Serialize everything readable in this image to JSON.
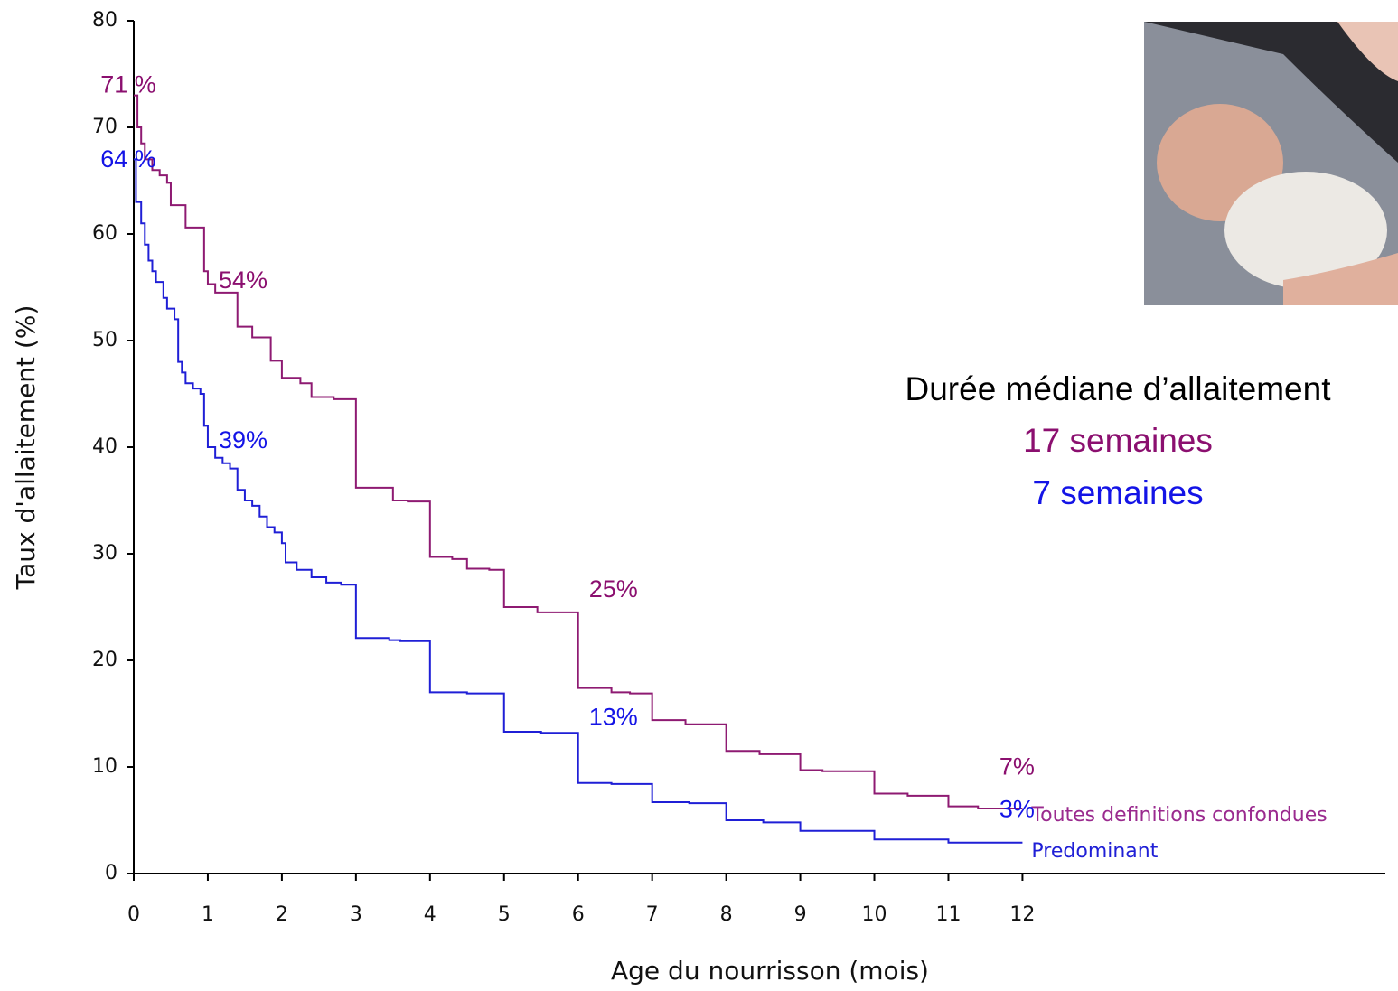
{
  "chart_data": {
    "type": "step",
    "y_label": "Taux d'allaitement (%)",
    "x_label": "Age du nourrisson (mois)",
    "xlim": [
      0,
      16.9
    ],
    "xticks": [
      0,
      1,
      2,
      3,
      4,
      5,
      6,
      7,
      8,
      9,
      10,
      11,
      12
    ],
    "ylim": [
      0,
      80
    ],
    "yticks": [
      0,
      10,
      20,
      30,
      40,
      50,
      60,
      70,
      80
    ],
    "series": [
      {
        "name": "Toutes definitions confondues",
        "color": "#8e1a72",
        "label_color": "#9a2a8e",
        "x": [
          0,
          0.05,
          0.1,
          0.15,
          0.25,
          0.35,
          0.45,
          0.5,
          0.7,
          0.95,
          1.0,
          1.1,
          1.4,
          1.6,
          1.85,
          2.0,
          2.25,
          2.4,
          2.7,
          3.0,
          3.5,
          3.7,
          4.0,
          4.3,
          4.5,
          4.8,
          5.0,
          5.45,
          6.0,
          6.45,
          6.7,
          7.0,
          7.45,
          8.0,
          8.45,
          9.0,
          9.3,
          10.0,
          10.45,
          11.0,
          11.4,
          12.0
        ],
        "values": [
          73,
          70,
          68.5,
          67,
          66,
          65.5,
          64.8,
          62.7,
          60.6,
          56.5,
          55.3,
          54.5,
          51.3,
          50.3,
          48.1,
          46.5,
          46,
          44.7,
          44.5,
          36.2,
          35,
          34.9,
          29.7,
          29.5,
          28.6,
          28.5,
          25,
          24.5,
          17.4,
          17.0,
          16.9,
          14.4,
          14.0,
          11.5,
          11.2,
          9.7,
          9.6,
          7.5,
          7.3,
          6.3,
          6.1,
          6.1
        ]
      },
      {
        "name": "Predominant",
        "color": "#1f1fd6",
        "label_color": "#1f1fd6",
        "x": [
          0,
          0.03,
          0.1,
          0.15,
          0.2,
          0.25,
          0.3,
          0.4,
          0.45,
          0.55,
          0.6,
          0.65,
          0.7,
          0.8,
          0.9,
          0.95,
          1.0,
          1.1,
          1.2,
          1.3,
          1.4,
          1.5,
          1.6,
          1.7,
          1.8,
          1.9,
          2.0,
          2.05,
          2.2,
          2.4,
          2.6,
          2.8,
          3.0,
          3.45,
          3.6,
          4.0,
          4.5,
          5.0,
          5.5,
          6.0,
          6.45,
          7.0,
          7.5,
          8.0,
          8.5,
          9.0,
          9.5,
          10.0,
          10.5,
          11.0,
          11.5,
          12.0
        ],
        "values": [
          67,
          63,
          61,
          59,
          57.5,
          56.5,
          55.5,
          54,
          53,
          52,
          48,
          47,
          46,
          45.5,
          45,
          42,
          40,
          39,
          38.5,
          38,
          36,
          35,
          34.5,
          33.5,
          32.5,
          32,
          31,
          29.2,
          28.5,
          27.8,
          27.3,
          27.1,
          22.1,
          21.9,
          21.8,
          17,
          16.9,
          13.3,
          13.2,
          8.5,
          8.4,
          6.7,
          6.6,
          5.0,
          4.8,
          4.0,
          4.0,
          3.2,
          3.2,
          2.9,
          2.9,
          2.9
        ]
      }
    ],
    "annotations": [
      {
        "text": "71 %",
        "x": 0,
        "y": 71,
        "color": "#8b0f6f"
      },
      {
        "text": "64 %",
        "x": 0,
        "y": 64,
        "color": "#1414e6"
      },
      {
        "text": "54%",
        "x": 1,
        "y": 54,
        "color": "#8b0f6f"
      },
      {
        "text": "39%",
        "x": 1,
        "y": 39,
        "color": "#1414e6"
      },
      {
        "text": "25%",
        "x": 6,
        "y": 25,
        "color": "#8b0f6f"
      },
      {
        "text": "13%",
        "x": 6,
        "y": 13,
        "color": "#1414e6"
      },
      {
        "text": "7%",
        "x": 12,
        "y": 7,
        "color": "#8b0f6f"
      },
      {
        "text": "3%",
        "x": 12,
        "y": 3,
        "color": "#1414e6"
      }
    ],
    "median_note": {
      "title": "Durée médiane d’allaitement",
      "lines": [
        {
          "text": "17 semaines",
          "color": "#8b0f6f"
        },
        {
          "text": "7 semaines",
          "color": "#1414e6"
        }
      ]
    }
  }
}
